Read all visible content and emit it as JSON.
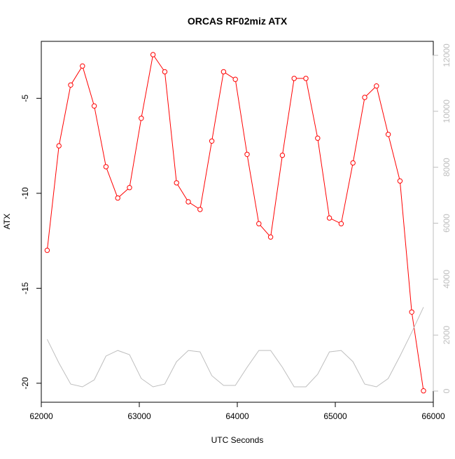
{
  "chart_data": {
    "type": "line",
    "title": "ORCAS RF02miz ATX",
    "xlabel": "UTC Seconds",
    "ylabel": "ATX",
    "xlim": [
      62000,
      66000
    ],
    "ylim": [
      -21,
      -2
    ],
    "y2lim": [
      -400,
      12500
    ],
    "x_ticks": [
      62000,
      63000,
      64000,
      65000,
      66000
    ],
    "y_ticks": [
      -20,
      -15,
      -10,
      -5
    ],
    "y2_ticks": [
      0,
      2000,
      4000,
      6000,
      8000,
      10000,
      12000
    ],
    "grid": false,
    "legend": "none",
    "series": [
      {
        "axis": "left",
        "color": "#ff0000",
        "marker": "open-circle",
        "x": [
          62060,
          62180,
          62300,
          62420,
          62540,
          62660,
          62780,
          62900,
          63020,
          63140,
          63260,
          63380,
          63500,
          63620,
          63740,
          63860,
          63980,
          64100,
          64220,
          64340,
          64460,
          64580,
          64700,
          64820,
          64940,
          65060,
          65180,
          65300,
          65420,
          65540,
          65660,
          65780,
          65900
        ],
        "y": [
          -13.0,
          -7.5,
          -4.3,
          -3.3,
          -5.4,
          -8.6,
          -10.25,
          -9.7,
          -6.05,
          -2.7,
          -3.6,
          -9.45,
          -10.45,
          -10.85,
          -7.25,
          -3.6,
          -4.0,
          -7.95,
          -11.6,
          -12.3,
          -8.0,
          -3.95,
          -3.95,
          -7.1,
          -11.3,
          -11.6,
          -8.4,
          -4.95,
          -4.35,
          -6.9,
          -9.35,
          -16.25,
          -20.4
        ]
      },
      {
        "axis": "right",
        "color": "#bebebe",
        "marker": "none",
        "x": [
          62060,
          62180,
          62300,
          62420,
          62540,
          62660,
          62780,
          62900,
          63020,
          63140,
          63260,
          63380,
          63500,
          63620,
          63740,
          63860,
          63980,
          64100,
          64220,
          64340,
          64460,
          64580,
          64700,
          64820,
          64940,
          65060,
          65180,
          65300,
          65420,
          65540,
          65660,
          65780,
          65900
        ],
        "y": [
          1850,
          1000,
          250,
          150,
          400,
          1250,
          1450,
          1300,
          450,
          150,
          250,
          1050,
          1450,
          1400,
          550,
          200,
          200,
          850,
          1450,
          1450,
          850,
          150,
          150,
          600,
          1400,
          1450,
          1050,
          250,
          150,
          450,
          1250,
          2100,
          3000
        ]
      }
    ]
  }
}
